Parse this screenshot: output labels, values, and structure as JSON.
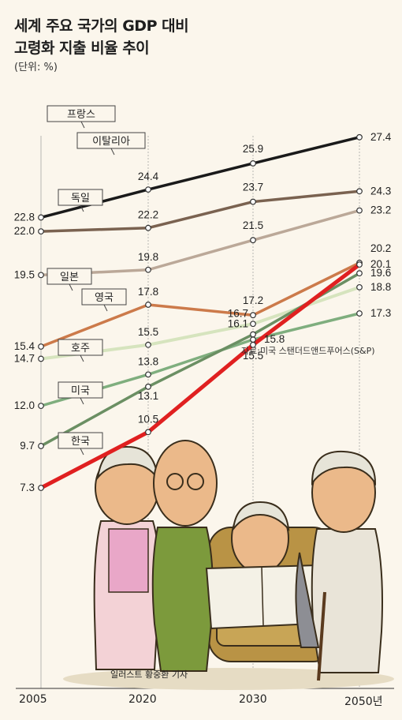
{
  "header": {
    "title_line1": "세계 주요 국가의 GDP 대비",
    "title_line2": "고령화 지출 비율 추이",
    "unit": "(단위: %)"
  },
  "source": "자료:미국 스탠더드앤드푸어스(S&P)",
  "credit": "일러스트 황중환 기자",
  "chart_data": {
    "type": "line",
    "title": "세계 주요 국가의 GDP 대비 고령화 지출 비율 추이",
    "ylabel": "(단위: %)",
    "x": [
      "2005",
      "2020",
      "2030",
      "2050년"
    ],
    "series": [
      {
        "name": "프랑스",
        "values": [
          22.8,
          24.4,
          25.9,
          27.4
        ],
        "color": "#1a1a1a"
      },
      {
        "name": "이탈리아",
        "values": [
          22.0,
          22.2,
          23.7,
          24.3
        ],
        "color": "#7a6250"
      },
      {
        "name": "독일",
        "values": [
          19.5,
          19.8,
          21.5,
          23.2
        ],
        "color": "#bba898"
      },
      {
        "name": "일본",
        "values": [
          15.4,
          17.8,
          17.2,
          20.2
        ],
        "color": "#cc7a4a"
      },
      {
        "name": "영국",
        "values": [
          14.7,
          15.5,
          16.7,
          18.8
        ],
        "color": "#d6e4be"
      },
      {
        "name": "호주",
        "values": [
          12.0,
          13.8,
          15.8,
          17.3
        ],
        "color": "#7fae7e"
      },
      {
        "name": "미국",
        "values": [
          9.7,
          13.1,
          16.1,
          19.6
        ],
        "color": "#6b8f63"
      },
      {
        "name": "한국",
        "values": [
          7.3,
          10.5,
          15.5,
          20.1
        ],
        "color": "#e02020"
      }
    ]
  }
}
